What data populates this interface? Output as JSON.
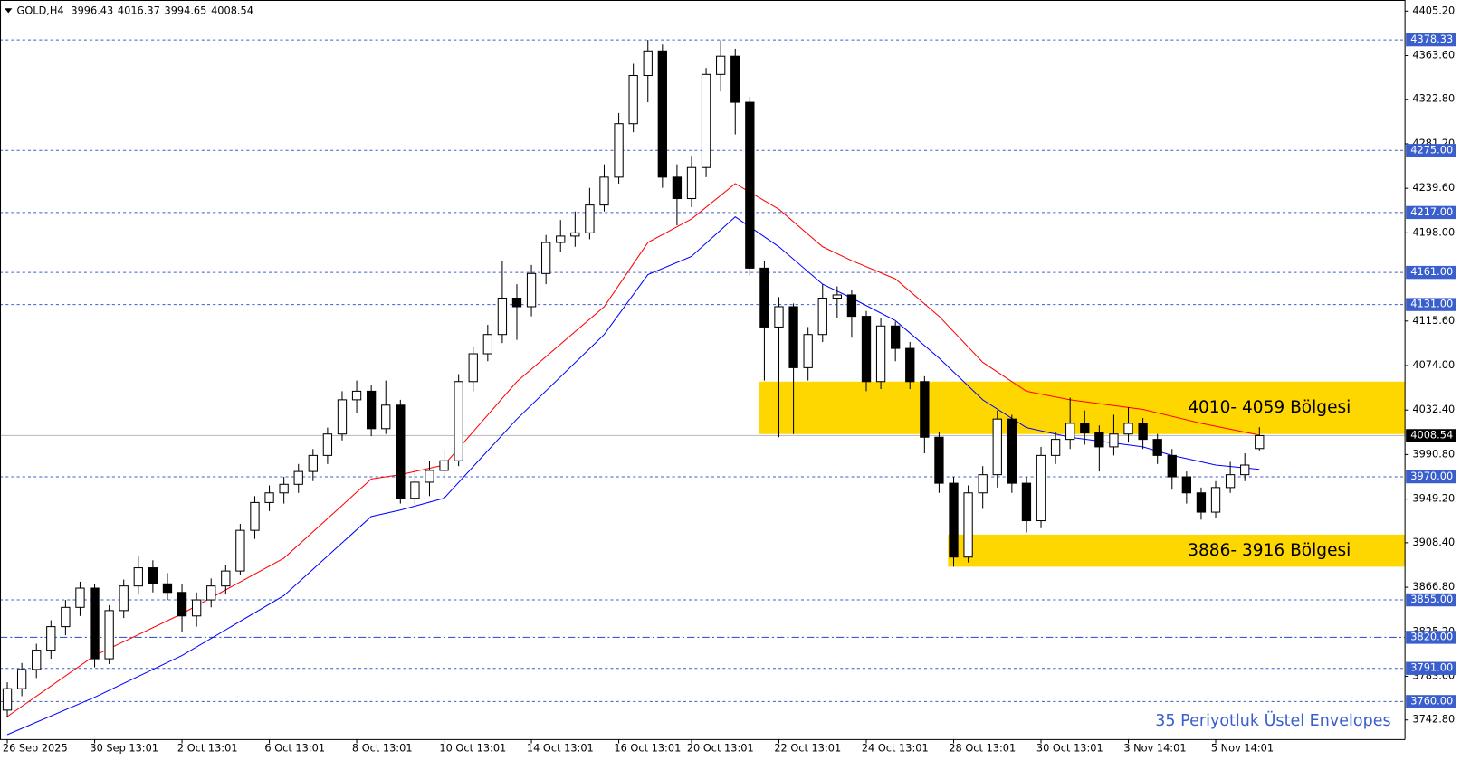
{
  "chart_data": {
    "type": "candlestick",
    "symbol": "GOLD,H4",
    "annotation": "35 Periyotluk Üstel Envelopes",
    "up_color": "#ffffff",
    "down_color": "#000000",
    "outline": "#000000",
    "grid": false,
    "xlim": [
      -0.5,
      96
    ],
    "ylim": [
      3724.5,
      4415.6
    ],
    "yticks": [
      {
        "value": 4405.2,
        "label": "4405.20"
      },
      {
        "value": 4363.6,
        "label": "4363.60"
      },
      {
        "value": 4322.8,
        "label": "4322.80"
      },
      {
        "value": 4281.2,
        "label": "4281.20"
      },
      {
        "value": 4239.6,
        "label": "4239.60"
      },
      {
        "value": 4198,
        "label": "4198.00"
      },
      {
        "value": 4115.6,
        "label": "4115.60"
      },
      {
        "value": 4074,
        "label": "4074.00"
      },
      {
        "value": 4032.4,
        "label": "4032.40"
      },
      {
        "value": 3990.8,
        "label": "3990.80"
      },
      {
        "value": 3949.2,
        "label": "3949.20"
      },
      {
        "value": 3908.4,
        "label": "3908.40"
      },
      {
        "value": 3866.8,
        "label": "3866.80"
      },
      {
        "value": 3825.2,
        "label": "3825.20"
      },
      {
        "value": 3783.6,
        "label": "3783.60"
      },
      {
        "value": 3742.8,
        "label": "3742.80"
      }
    ],
    "xticks": [
      {
        "value": 0,
        "label": "26 Sep 2025"
      },
      {
        "value": 6,
        "label": "30 Sep 13:01"
      },
      {
        "value": 12,
        "label": "2 Oct 13:01"
      },
      {
        "value": 18,
        "label": "6 Oct 13:01"
      },
      {
        "value": 24,
        "label": "8 Oct 13:01"
      },
      {
        "value": 30,
        "label": "10 Oct 13:01"
      },
      {
        "value": 36,
        "label": "14 Oct 13:01"
      },
      {
        "value": 42,
        "label": "16 Oct 13:01"
      },
      {
        "value": 47,
        "label": "20 Oct 13:01"
      },
      {
        "value": 53,
        "label": "22 Oct 13:01"
      },
      {
        "value": 59,
        "label": "24 Oct 13:01"
      },
      {
        "value": 65,
        "label": "28 Oct 13:01"
      },
      {
        "value": 71,
        "label": "30 Oct 13:01"
      },
      {
        "value": 77,
        "label": "3 Nov 14:01"
      },
      {
        "value": 83,
        "label": "5 Nov 14:01"
      }
    ],
    "levels": [
      4378.33,
      {
        "value": 4275,
        "label": "4275.00"
      },
      {
        "value": 4217,
        "label": "4217.00"
      },
      {
        "value": 4161,
        "label": "4161.00"
      },
      {
        "value": 4131,
        "label": "4131.00"
      },
      {
        "value": 3970,
        "label": "3970.00"
      },
      {
        "value": 3855,
        "label": "3855.00"
      },
      {
        "value": 3820,
        "label": "3820.00"
      },
      {
        "value": 3791,
        "label": "3791.00"
      },
      {
        "value": 3760,
        "label": "3760.00"
      }
    ],
    "level_styles": [
      "dotted",
      "dotted",
      "dotted",
      "dotted",
      "dotted",
      "dotted",
      "dotted",
      "dashdot",
      "dotted",
      "dotted"
    ],
    "level_color": "#3a5fcd",
    "zone_color": "#ffd700",
    "zones": [
      {
        "low": 4010,
        "high": 4059,
        "start": 52,
        "label": "4010- 4059 Bölgesi"
      },
      {
        "low": 3886,
        "high": 3916,
        "start": 65,
        "label": "3886- 3916 Bölgesi"
      }
    ],
    "series": [
      {
        "color": "#ff0000",
        "x": [
          0,
          6,
          12,
          19,
          25,
          27,
          30,
          35,
          41,
          44,
          47,
          50,
          53,
          56,
          58,
          61,
          64,
          67,
          70,
          73,
          78,
          82,
          86
        ],
        "values": [
          3746,
          3803,
          3842,
          3894,
          3968,
          3972,
          3981,
          4059,
          4129,
          4189,
          4211,
          4244,
          4220,
          4185,
          4172,
          4155,
          4120,
          4077,
          4050,
          4042,
          4033,
          4020,
          4009
        ]
      },
      {
        "color": "#0000ff",
        "x": [
          0,
          6,
          12,
          19,
          25,
          27,
          30,
          35,
          41,
          44,
          47,
          50,
          53,
          56,
          58,
          61,
          64,
          67,
          70,
          73,
          78,
          80,
          83,
          86
        ],
        "values": [
          3729,
          3764,
          3803,
          3859,
          3933,
          3939,
          3950,
          4024,
          4103,
          4159,
          4176,
          4213,
          4185,
          4150,
          4137,
          4116,
          4081,
          4042,
          4016,
          4007,
          3998,
          3990,
          3981,
          3977
        ]
      }
    ],
    "candles": [
      [
        3752,
        3778,
        3745,
        3772
      ],
      [
        3772,
        3796,
        3765,
        3790
      ],
      [
        3790,
        3814,
        3782,
        3808
      ],
      [
        3808,
        3836,
        3800,
        3830
      ],
      [
        3830,
        3855,
        3822,
        3848
      ],
      [
        3848,
        3872,
        3840,
        3866
      ],
      [
        3866,
        3870,
        3792,
        3800
      ],
      [
        3800,
        3850,
        3795,
        3845
      ],
      [
        3845,
        3874,
        3838,
        3868
      ],
      [
        3868,
        3896,
        3860,
        3885
      ],
      [
        3885,
        3892,
        3862,
        3870
      ],
      [
        3870,
        3880,
        3855,
        3862
      ],
      [
        3862,
        3870,
        3825,
        3840
      ],
      [
        3840,
        3862,
        3830,
        3855
      ],
      [
        3855,
        3875,
        3848,
        3868
      ],
      [
        3868,
        3888,
        3860,
        3882
      ],
      [
        3882,
        3926,
        3878,
        3920
      ],
      [
        3920,
        3952,
        3912,
        3946
      ],
      [
        3946,
        3962,
        3938,
        3955
      ],
      [
        3955,
        3970,
        3945,
        3963
      ],
      [
        3963,
        3982,
        3955,
        3975
      ],
      [
        3975,
        3996,
        3966,
        3990
      ],
      [
        3990,
        4016,
        3982,
        4010
      ],
      [
        4010,
        4050,
        4004,
        4042
      ],
      [
        4042,
        4060,
        4030,
        4050
      ],
      [
        4050,
        4056,
        4008,
        4015
      ],
      [
        4015,
        4060,
        4010,
        4037
      ],
      [
        4037,
        4042,
        3945,
        3950
      ],
      [
        3950,
        3978,
        3944,
        3965
      ],
      [
        3965,
        3985,
        3952,
        3976
      ],
      [
        3976,
        3995,
        3968,
        3985
      ],
      [
        3985,
        4066,
        3980,
        4059
      ],
      [
        4059,
        4092,
        4050,
        4085
      ],
      [
        4085,
        4112,
        4078,
        4103
      ],
      [
        4103,
        4172,
        4095,
        4137
      ],
      [
        4137,
        4150,
        4098,
        4129
      ],
      [
        4129,
        4168,
        4120,
        4160
      ],
      [
        4160,
        4196,
        4150,
        4189
      ],
      [
        4189,
        4210,
        4180,
        4195
      ],
      [
        4195,
        4218,
        4185,
        4198
      ],
      [
        4198,
        4240,
        4192,
        4224
      ],
      [
        4224,
        4262,
        4218,
        4250
      ],
      [
        4250,
        4310,
        4244,
        4300
      ],
      [
        4300,
        4356,
        4292,
        4345
      ],
      [
        4345,
        4378.33,
        4320,
        4368
      ],
      [
        4368,
        4374,
        4240,
        4250
      ],
      [
        4250,
        4262,
        4205,
        4230
      ],
      [
        4230,
        4270,
        4222,
        4259
      ],
      [
        4259,
        4352,
        4250,
        4346
      ],
      [
        4346,
        4378,
        4330,
        4363
      ],
      [
        4363,
        4370,
        4290,
        4320
      ],
      [
        4320,
        4325,
        4158,
        4165
      ],
      [
        4165,
        4172,
        4060,
        4110
      ],
      [
        4110,
        4138,
        4007,
        4129
      ],
      [
        4129,
        4132,
        4010,
        4072
      ],
      [
        4072,
        4110,
        4060,
        4103
      ],
      [
        4103,
        4150,
        4096,
        4137
      ],
      [
        4137,
        4148,
        4118,
        4140
      ],
      [
        4140,
        4145,
        4100,
        4120
      ],
      [
        4120,
        4125,
        4050,
        4059
      ],
      [
        4059,
        4118,
        4052,
        4111
      ],
      [
        4111,
        4115,
        4078,
        4090
      ],
      [
        4090,
        4096,
        4052,
        4059
      ],
      [
        4059,
        4064,
        3992,
        4007
      ],
      [
        4007,
        4012,
        3955,
        3964
      ],
      [
        3964,
        3970,
        3886,
        3895
      ],
      [
        3895,
        3962,
        3890,
        3955
      ],
      [
        3955,
        3980,
        3940,
        3972
      ],
      [
        3972,
        4032,
        3960,
        4024
      ],
      [
        4024,
        4028,
        3955,
        3964
      ],
      [
        3964,
        3970,
        3918,
        3929
      ],
      [
        3929,
        3998,
        3922,
        3990
      ],
      [
        3990,
        4012,
        3982,
        4005
      ],
      [
        4005,
        4044,
        3996,
        4020
      ],
      [
        4020,
        4032,
        4000,
        4011
      ],
      [
        4011,
        4018,
        3975,
        3998
      ],
      [
        3998,
        4028,
        3990,
        4010
      ],
      [
        4010,
        4035,
        4002,
        4020
      ],
      [
        4020,
        4025,
        3996,
        4005
      ],
      [
        4005,
        4010,
        3982,
        3990
      ],
      [
        3990,
        3996,
        3958,
        3970
      ],
      [
        3970,
        3975,
        3945,
        3955
      ],
      [
        3955,
        3960,
        3930,
        3937
      ],
      [
        3937,
        3966,
        3932,
        3960
      ],
      [
        3960,
        3984,
        3955,
        3972
      ],
      [
        3972,
        3992,
        3966,
        3981
      ],
      [
        3996.43,
        4016.37,
        3994.65,
        4008.54
      ]
    ]
  }
}
